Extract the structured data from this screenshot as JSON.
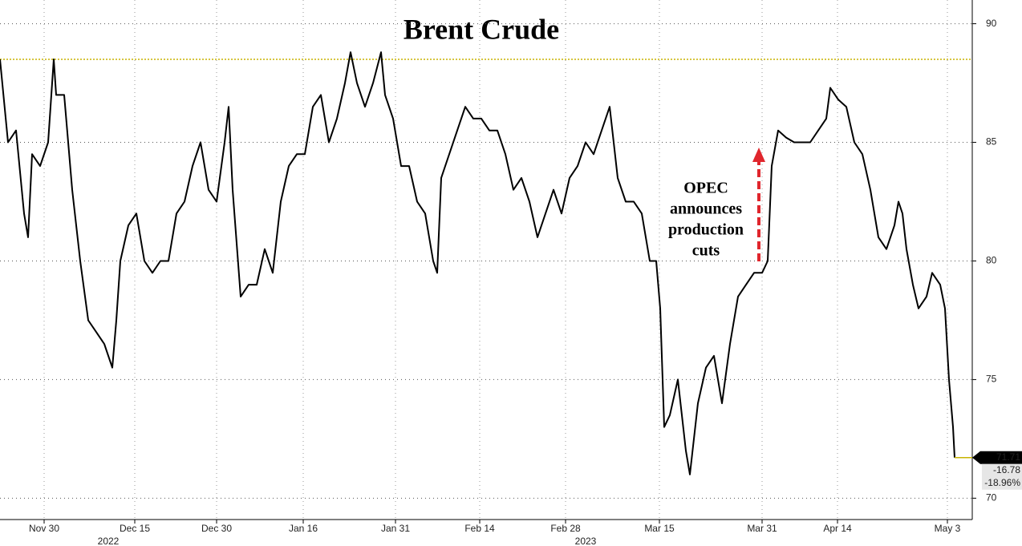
{
  "chart_data": {
    "type": "line",
    "title": "Brent Crude",
    "x": [
      0,
      1,
      2,
      3,
      3.5,
      4,
      5,
      6,
      6.7,
      7,
      8,
      9,
      10,
      11,
      12,
      13,
      14,
      14.5,
      15,
      16,
      17,
      18,
      19,
      20,
      21,
      22,
      23,
      24,
      25,
      26,
      27,
      28,
      28.5,
      29,
      30,
      31,
      32,
      33,
      34,
      35,
      36,
      37,
      38,
      39,
      40,
      41,
      42,
      43,
      43.7,
      44.5,
      45.5,
      46.5,
      47.5,
      48,
      49,
      50,
      51,
      52,
      53,
      54,
      54.5,
      55,
      56,
      57,
      58,
      59,
      60,
      61,
      62,
      63,
      64,
      65,
      66,
      67,
      68,
      69,
      70,
      71,
      72,
      73,
      74,
      75,
      76,
      77,
      78,
      79,
      80,
      81,
      81.8,
      82.3,
      82.8,
      83.5,
      84.5,
      85.5,
      86,
      87,
      88,
      89,
      90,
      91,
      92,
      93,
      94,
      95,
      95.7,
      96.2,
      97,
      98,
      99,
      100,
      101,
      102,
      103,
      103.5,
      104.5,
      105.5,
      106.5,
      107.5,
      108.5,
      109.5,
      110.5,
      111.5,
      112,
      112.5,
      113,
      113.8,
      114.5,
      115.5,
      116.2,
      117.2,
      117.8,
      118.3,
      118.8,
      119
    ],
    "series": [
      {
        "name": "Brent Crude",
        "color": "#000000",
        "values": [
          88.5,
          85,
          85.5,
          82,
          81,
          84.5,
          84,
          85,
          88.5,
          87,
          87,
          83,
          80,
          77.5,
          77,
          76.5,
          75.5,
          77.5,
          80,
          81.5,
          82,
          80,
          79.5,
          80,
          80,
          82,
          82.5,
          84,
          85,
          83,
          82.5,
          85,
          86.5,
          83,
          78.5,
          79,
          79,
          80.5,
          79.5,
          82.5,
          84,
          84.5,
          84.5,
          86.5,
          87,
          85,
          86,
          87.5,
          88.8,
          87.5,
          86.5,
          87.5,
          88.8,
          87,
          86,
          84,
          84,
          82.5,
          82,
          80,
          79.5,
          83.5,
          84.5,
          85.5,
          86.5,
          86,
          86,
          85.5,
          85.5,
          84.5,
          83,
          83.5,
          82.5,
          81,
          82,
          83,
          82,
          83.5,
          84,
          85,
          84.5,
          85.5,
          86.5,
          83.5,
          82.5,
          82.5,
          82,
          80,
          80,
          78,
          73,
          73.5,
          75,
          72,
          71,
          74,
          75.5,
          76,
          74,
          76.5,
          78.5,
          79,
          79.5,
          79.5,
          80,
          84,
          85.5,
          85.2,
          85,
          85,
          85,
          85.5,
          86,
          87.3,
          86.8,
          86.5,
          85,
          84.5,
          83,
          81,
          80.5,
          81.5,
          82.5,
          82,
          80.5,
          79,
          78,
          78.5,
          79.5,
          79,
          78,
          75,
          73,
          71.71
        ]
      }
    ],
    "xlim": [
      0,
      121.2
    ],
    "xticks": [
      {
        "value": 5.5,
        "label": "Nov 30"
      },
      {
        "value": 16.8,
        "label": "Dec 15"
      },
      {
        "value": 27,
        "label": "Dec 30"
      },
      {
        "value": 37.8,
        "label": "Jan 16"
      },
      {
        "value": 49.3,
        "label": "Jan 31"
      },
      {
        "value": 59.8,
        "label": "Feb 14"
      },
      {
        "value": 70.5,
        "label": "Feb 28"
      },
      {
        "value": 82.2,
        "label": "Mar 15"
      },
      {
        "value": 95,
        "label": "Mar 31"
      },
      {
        "value": 104.4,
        "label": "Apr 14"
      },
      {
        "value": 118.1,
        "label": "May 3"
      }
    ],
    "year_labels": [
      "2022",
      "2023"
    ],
    "ylim": [
      69.1,
      91
    ],
    "yticks": [
      70,
      75,
      80,
      85,
      90
    ],
    "grid": true,
    "reference_line": {
      "value": 88.5,
      "color": "#c8b400"
    },
    "last_value_labels": [
      "71.71",
      "-16.78",
      "-18.96%"
    ],
    "annotation": [
      "OPEC",
      "announces",
      "production",
      "cuts"
    ]
  }
}
